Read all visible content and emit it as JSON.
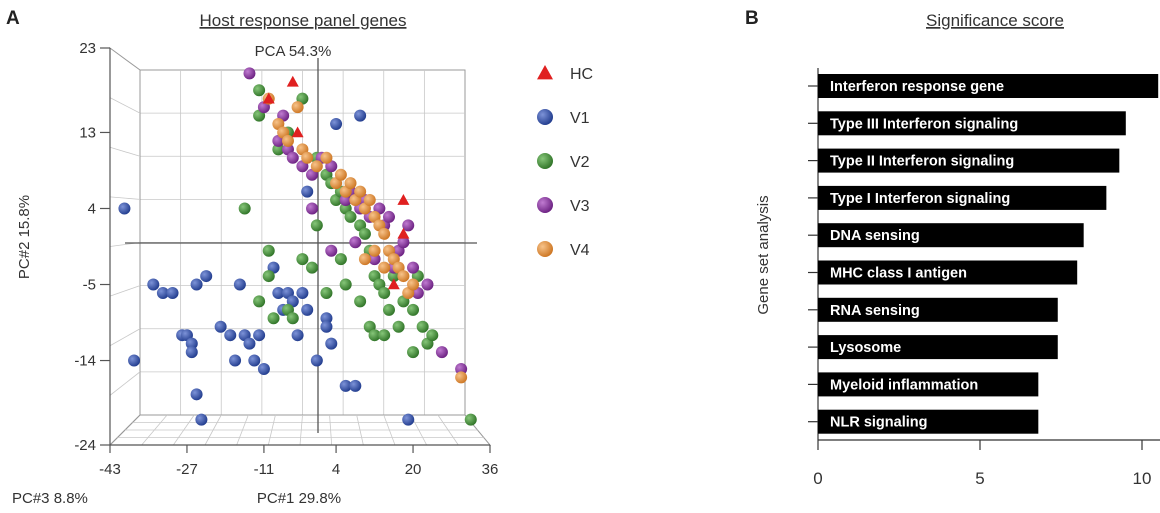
{
  "panels": [
    {
      "letter": "A"
    },
    {
      "letter": "B"
    }
  ],
  "chart_data": [
    {
      "type": "scatter",
      "title": "Host response panel genes",
      "projection": "3D PCA",
      "top_label": "PCA 54.3%",
      "xlabel": "PC#1 29.8%",
      "ylabel": "PC#2 15.8%",
      "zlabel": "PC#3 8.8%",
      "xticks": [
        "-43",
        "-27",
        "-11",
        "4",
        "20",
        "36"
      ],
      "yticks": [
        "23",
        "13",
        "4",
        "-5",
        "-14",
        "-24"
      ],
      "legend_position": "right",
      "grid": true,
      "legend": [
        {
          "name": "HC",
          "marker": "triangle",
          "color": "#e02020"
        },
        {
          "name": "V1",
          "marker": "sphere",
          "color": "#2a4aa8"
        },
        {
          "name": "V2",
          "marker": "sphere",
          "color": "#3f8f35"
        },
        {
          "name": "V3",
          "marker": "sphere",
          "color": "#8a2ea0"
        },
        {
          "name": "V4",
          "marker": "sphere",
          "color": "#e89433"
        }
      ],
      "series": [
        {
          "name": "HC",
          "points": [
            [
              -10,
              17
            ],
            [
              -5,
              19
            ],
            [
              -4,
              13
            ],
            [
              18,
              5
            ],
            [
              18,
              1
            ],
            [
              16,
              -5
            ]
          ]
        },
        {
          "name": "V1",
          "points": [
            [
              -40,
              4
            ],
            [
              -38,
              -14
            ],
            [
              -34,
              -5
            ],
            [
              -32,
              -6
            ],
            [
              -30,
              -6
            ],
            [
              -28,
              -11
            ],
            [
              -27,
              -11
            ],
            [
              -26,
              -12
            ],
            [
              -26,
              -13
            ],
            [
              -25,
              -5
            ],
            [
              -23,
              -4
            ],
            [
              -25,
              -18
            ],
            [
              -24,
              -21
            ],
            [
              -20,
              -10
            ],
            [
              -18,
              -11
            ],
            [
              -17,
              -14
            ],
            [
              -16,
              -5
            ],
            [
              -15,
              -11
            ],
            [
              -14,
              -12
            ],
            [
              -13,
              -14
            ],
            [
              -12,
              -11
            ],
            [
              -11,
              -15
            ],
            [
              -9,
              -3
            ],
            [
              -8,
              -6
            ],
            [
              -7,
              -8
            ],
            [
              -6,
              -6
            ],
            [
              -5,
              -7
            ],
            [
              -4,
              -11
            ],
            [
              -2,
              -8
            ],
            [
              0,
              -14
            ],
            [
              2,
              -9
            ],
            [
              2,
              -10
            ],
            [
              3,
              -12
            ],
            [
              6,
              -17
            ],
            [
              8,
              -17
            ],
            [
              -3,
              -6
            ],
            [
              4,
              14
            ],
            [
              -2,
              6
            ],
            [
              9,
              15
            ],
            [
              19,
              -21
            ]
          ]
        },
        {
          "name": "V2",
          "points": [
            [
              -12,
              18
            ],
            [
              -12,
              15
            ],
            [
              -3,
              17
            ],
            [
              -8,
              11
            ],
            [
              -6,
              13
            ],
            [
              0,
              10
            ],
            [
              2,
              8
            ],
            [
              3,
              7
            ],
            [
              4,
              5
            ],
            [
              5,
              6
            ],
            [
              6,
              4
            ],
            [
              7,
              3
            ],
            [
              9,
              2
            ],
            [
              10,
              1
            ],
            [
              11,
              -1
            ],
            [
              12,
              -4
            ],
            [
              13,
              -5
            ],
            [
              14,
              -6
            ],
            [
              15,
              -8
            ],
            [
              16,
              -4
            ],
            [
              18,
              -7
            ],
            [
              20,
              -8
            ],
            [
              21,
              -4
            ],
            [
              23,
              -12
            ],
            [
              32,
              -21
            ],
            [
              -15,
              4
            ],
            [
              -10,
              -1
            ],
            [
              -10,
              -4
            ],
            [
              -12,
              -7
            ],
            [
              -6,
              -8
            ],
            [
              -5,
              -9
            ],
            [
              -9,
              -9
            ],
            [
              -3,
              -2
            ],
            [
              -1,
              -3
            ],
            [
              0,
              2
            ],
            [
              2,
              -6
            ],
            [
              5,
              -2
            ],
            [
              6,
              -5
            ],
            [
              9,
              -7
            ],
            [
              11,
              -10
            ],
            [
              12,
              -11
            ],
            [
              14,
              -11
            ],
            [
              17,
              -10
            ],
            [
              20,
              -13
            ],
            [
              22,
              -10
            ],
            [
              24,
              -11
            ]
          ]
        },
        {
          "name": "V3",
          "points": [
            [
              -14,
              20
            ],
            [
              -11,
              16
            ],
            [
              -7,
              15
            ],
            [
              -8,
              12
            ],
            [
              -6,
              11
            ],
            [
              -5,
              10
            ],
            [
              -3,
              9
            ],
            [
              -1,
              8
            ],
            [
              1,
              10
            ],
            [
              3,
              9
            ],
            [
              6,
              5
            ],
            [
              7,
              6
            ],
            [
              9,
              4
            ],
            [
              10,
              5
            ],
            [
              11,
              3
            ],
            [
              13,
              4
            ],
            [
              14,
              2
            ],
            [
              15,
              3
            ],
            [
              17,
              -1
            ],
            [
              18,
              0
            ],
            [
              19,
              2
            ],
            [
              20,
              -3
            ],
            [
              21,
              -6
            ],
            [
              23,
              -5
            ],
            [
              26,
              -13
            ],
            [
              30,
              -15
            ],
            [
              -1,
              4
            ],
            [
              3,
              -1
            ],
            [
              8,
              0
            ],
            [
              12,
              -2
            ],
            [
              16,
              -3
            ]
          ]
        },
        {
          "name": "V4",
          "points": [
            [
              -10,
              17
            ],
            [
              -8,
              14
            ],
            [
              -7,
              13
            ],
            [
              -6,
              12
            ],
            [
              -4,
              16
            ],
            [
              -3,
              11
            ],
            [
              -2,
              10
            ],
            [
              0,
              9
            ],
            [
              2,
              10
            ],
            [
              4,
              7
            ],
            [
              5,
              8
            ],
            [
              6,
              6
            ],
            [
              7,
              7
            ],
            [
              8,
              5
            ],
            [
              9,
              6
            ],
            [
              10,
              4
            ],
            [
              11,
              5
            ],
            [
              12,
              3
            ],
            [
              13,
              2
            ],
            [
              14,
              1
            ],
            [
              15,
              -1
            ],
            [
              16,
              -2
            ],
            [
              17,
              -3
            ],
            [
              18,
              -4
            ],
            [
              19,
              -6
            ],
            [
              20,
              -5
            ],
            [
              30,
              -16
            ],
            [
              10,
              -2
            ],
            [
              12,
              -1
            ],
            [
              14,
              -3
            ]
          ]
        }
      ]
    },
    {
      "type": "bar",
      "orientation": "horizontal",
      "title": "Significance score",
      "ylabel": "Gene set analysis",
      "xlabel": "",
      "xlim": [
        0,
        10.5
      ],
      "xticks": [
        "0",
        "5",
        "10"
      ],
      "bar_color": "#000000",
      "label_color": "#ffffff",
      "categories": [
        "Interferon response gene",
        "Type III Interferon signaling",
        "Type II Interferon signaling",
        "Type I Interferon signaling",
        "DNA sensing",
        "MHC class I antigen",
        "RNA sensing",
        "Lysosome",
        "Myeloid inflammation",
        "NLR signaling"
      ],
      "values": [
        10.5,
        9.5,
        9.3,
        8.9,
        8.2,
        8.0,
        7.4,
        7.4,
        6.8,
        6.8
      ]
    }
  ]
}
